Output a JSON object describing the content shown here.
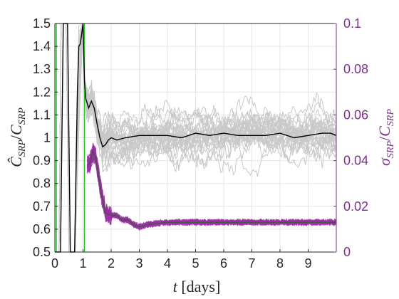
{
  "chart_data": {
    "type": "line",
    "xlabel": "t [days]",
    "ylabel_left": "Ĉ_SRP / C_SRP",
    "ylabel_right": "σ_SRP / C_SRP",
    "xlim": [
      0,
      10
    ],
    "ylim_left": [
      0.5,
      1.5
    ],
    "ylim_right": [
      0,
      0.1
    ],
    "grid": true,
    "x_ticks": [
      "0",
      "1",
      "2",
      "3",
      "4",
      "5",
      "6",
      "7",
      "8",
      "9"
    ],
    "y_ticks_left": [
      "0.5",
      "0.6",
      "0.7",
      "0.8",
      "0.9",
      "1",
      "1.1",
      "1.2",
      "1.3",
      "1.4",
      "1.5"
    ],
    "y_ticks_right": [
      "0",
      "0.02",
      "0.04",
      "0.06",
      "0.08",
      "0.1"
    ],
    "colors": {
      "left_axis": "#262626",
      "right_axis": "#7E2F8E",
      "mc_runs": "#c8c8c8",
      "mean_estimate": "#000000",
      "sigma_runs": "#9B2FA3",
      "mean_sigma": "#505050",
      "threshold_line": "#22c722"
    },
    "series": [
      {
        "axis": "left",
        "x": [
          0,
          0.2,
          0.3,
          0.45,
          0.55,
          0.7,
          0.8,
          0.85,
          0.9,
          0.95,
          1.0,
          1.05,
          1.1,
          1.2,
          1.3,
          1.4,
          1.5,
          1.6,
          1.7,
          1.8,
          1.9,
          2.0,
          2.2,
          2.5,
          3.0,
          3.5,
          4.0,
          4.5,
          5.0,
          5.5,
          6.0,
          6.5,
          7.0,
          7.5,
          8.0,
          8.5,
          9.0,
          9.5,
          9.8,
          10.0
        ],
        "values": [
          0.5,
          0.5,
          1.5,
          1.5,
          0.5,
          0.5,
          1.2,
          1.4,
          1.41,
          1.45,
          1.5,
          1.25,
          1.17,
          1.13,
          1.16,
          1.13,
          1.06,
          1.0,
          0.96,
          0.97,
          0.99,
          1.0,
          0.99,
          1.0,
          1.01,
          1.01,
          1.01,
          1.0,
          1.02,
          1.01,
          1.02,
          1.01,
          1.01,
          1.01,
          1.02,
          1.0,
          1.01,
          1.02,
          1.02,
          1.01
        ]
      },
      {
        "axis": "right",
        "x": [
          1.15,
          1.25,
          1.35,
          1.45,
          1.55,
          1.65,
          1.8,
          2.0,
          2.2,
          2.4,
          2.6,
          2.8,
          3.0,
          3.3,
          3.6,
          4.0,
          5.0,
          6.0,
          7.0,
          8.0,
          9.0,
          10.0
        ],
        "values": [
          0.038,
          0.039,
          0.044,
          0.041,
          0.034,
          0.026,
          0.017,
          0.016,
          0.016,
          0.014,
          0.014,
          0.012,
          0.011,
          0.012,
          0.0125,
          0.013,
          0.013,
          0.013,
          0.013,
          0.013,
          0.013,
          0.013
        ]
      }
    ],
    "threshold_x": [
      0.05,
      1.05
    ]
  }
}
